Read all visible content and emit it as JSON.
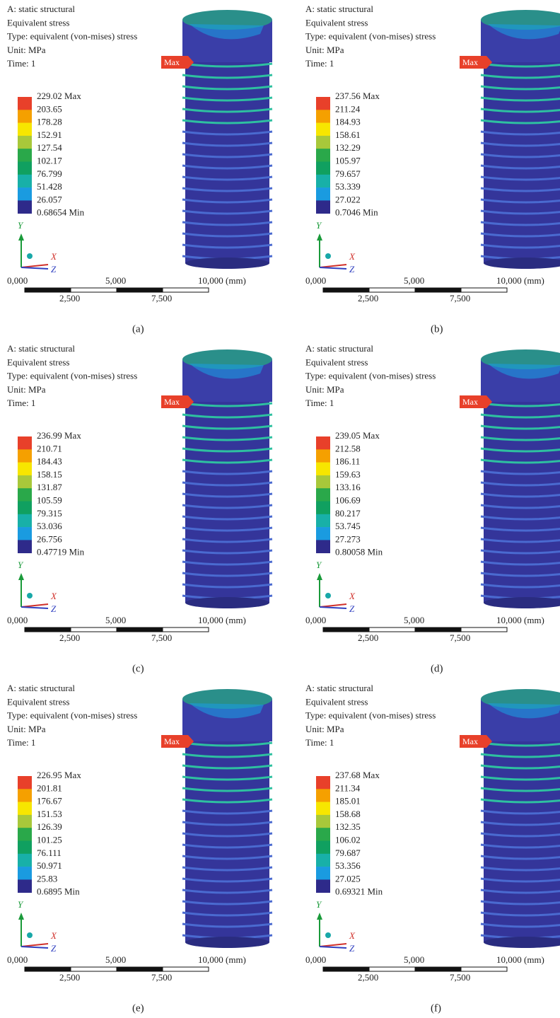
{
  "panels": [
    {
      "header": [
        "A: static structural",
        "Equivalent stress",
        "Type: equivalent (von-mises) stress",
        "Unit: MPa",
        "Time: 1"
      ],
      "legend": [
        "229.02 Max",
        "203.65",
        "178.28",
        "152.91",
        "127.54",
        "102.17",
        "76.799",
        "51.428",
        "26.057",
        "0.68654 Min"
      ],
      "max_label": "Max",
      "axes": [
        "Y",
        "X",
        "Z"
      ],
      "scale_top": [
        "0,000",
        "5,000",
        "10,000 (mm)"
      ],
      "scale_bottom": [
        "2,500",
        "7,500"
      ],
      "caption": "(a)"
    },
    {
      "header": [
        "A: static structural",
        "Equivalent stress",
        "Type: equivalent (von-mises) stress",
        "Unit: MPa",
        "Time: 1"
      ],
      "legend": [
        "237.56 Max",
        "211.24",
        "184.93",
        "158.61",
        "132.29",
        "105.97",
        "79.657",
        "53.339",
        "27.022",
        "0.7046 Min"
      ],
      "max_label": "Max",
      "axes": [
        "Y",
        "X",
        "Z"
      ],
      "scale_top": [
        "0,000",
        "5,000",
        "10,000 (mm)"
      ],
      "scale_bottom": [
        "2,500",
        "7,500"
      ],
      "caption": "(b)"
    },
    {
      "header": [
        "A: static structural",
        "Equivalent stress",
        "Type: equivalent (von-mises) stress",
        "Unit: MPa",
        "Time: 1"
      ],
      "legend": [
        "236.99 Max",
        "210.71",
        "184.43",
        "158.15",
        "131.87",
        "105.59",
        "79.315",
        "53.036",
        "26.756",
        "0.47719 Min"
      ],
      "max_label": "Max",
      "axes": [
        "Y",
        "X",
        "Z"
      ],
      "scale_top": [
        "0,000",
        "5,000",
        "10,000 (mm)"
      ],
      "scale_bottom": [
        "2,500",
        "7,500"
      ],
      "caption": "(c)"
    },
    {
      "header": [
        "A: static structural",
        "Equivalent stress",
        "Type: equivalent (von-mises) stress",
        "Unit: MPa",
        "Time: 1"
      ],
      "legend": [
        "239.05 Max",
        "212.58",
        "186.11",
        "159.63",
        "133.16",
        "106.69",
        "80.217",
        "53.745",
        "27.273",
        "0.80058 Min"
      ],
      "max_label": "Max",
      "axes": [
        "Y",
        "X",
        "Z"
      ],
      "scale_top": [
        "0,000",
        "5,000",
        "10,000 (mm)"
      ],
      "scale_bottom": [
        "2,500",
        "7,500"
      ],
      "caption": "(d)"
    },
    {
      "header": [
        "A: static structural",
        "Equivalent stress",
        "Type: equivalent (von-mises) stress",
        "Unit: MPa",
        "Time: 1"
      ],
      "legend": [
        "226.95 Max",
        "201.81",
        "176.67",
        "151.53",
        "126.39",
        "101.25",
        "76.111",
        "50.971",
        "25.83",
        "0.6895 Min"
      ],
      "max_label": "Max",
      "axes": [
        "Y",
        "X",
        "Z"
      ],
      "scale_top": [
        "0,000",
        "5,000",
        "10,000 (mm)"
      ],
      "scale_bottom": [
        "2,500",
        "7,500"
      ],
      "caption": "(e)"
    },
    {
      "header": [
        "A: static structural",
        "Equivalent stress",
        "Type: equivalent (von-mises) stress",
        "Unit: MPa",
        "Time: 1"
      ],
      "legend": [
        "237.68 Max",
        "211.34",
        "185.01",
        "158.68",
        "132.35",
        "106.02",
        "79.687",
        "53.356",
        "27.025",
        "0.69321 Min"
      ],
      "max_label": "Max",
      "axes": [
        "Y",
        "X",
        "Z"
      ],
      "scale_top": [
        "0,000",
        "5,000",
        "10,000 (mm)"
      ],
      "scale_bottom": [
        "2,500",
        "7,500"
      ],
      "caption": "(f)"
    }
  ]
}
